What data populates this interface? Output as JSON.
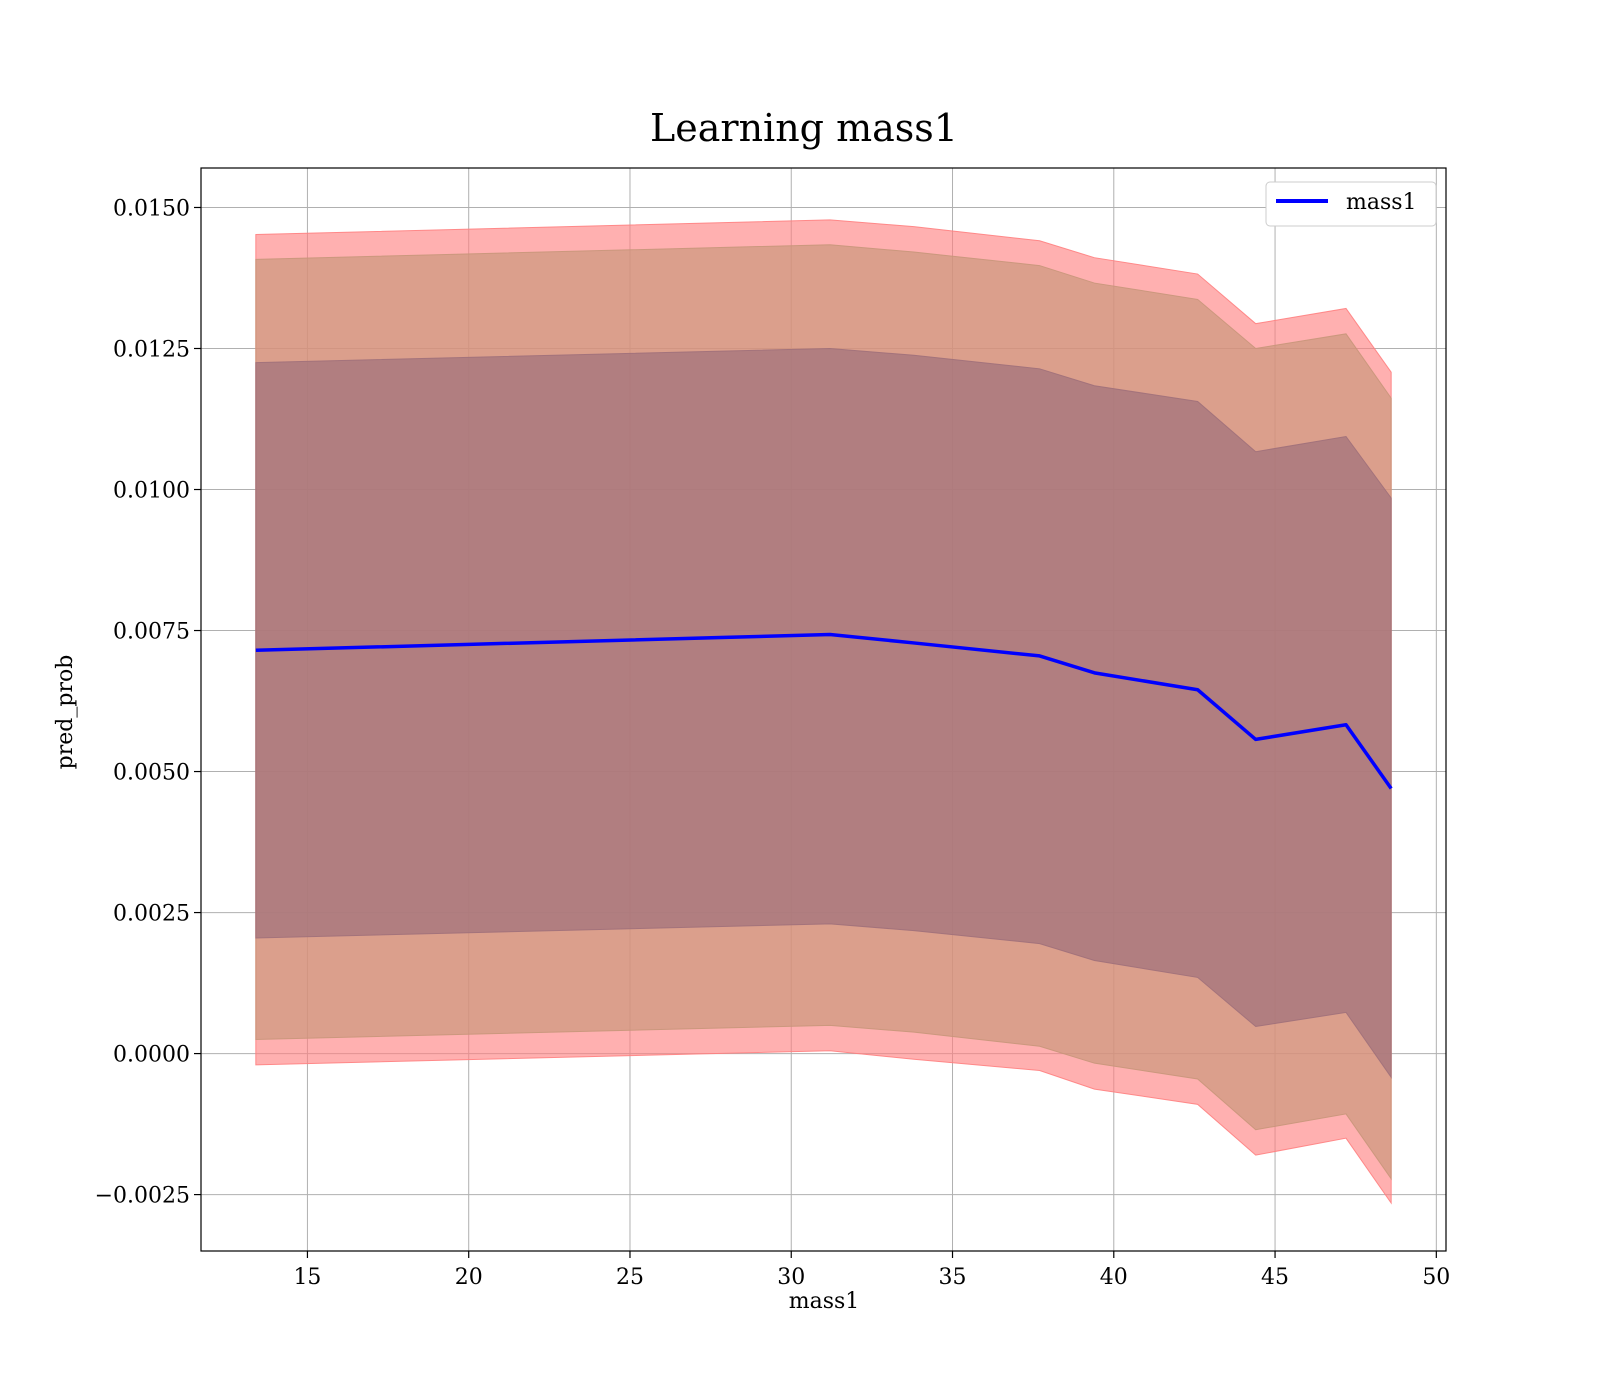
{
  "chart_data": {
    "type": "line",
    "title": "Learning mass1",
    "xlabel": "mass1",
    "ylabel": "pred_prob",
    "xlim": [
      11.7,
      50.3
    ],
    "ylim": [
      -0.0035,
      0.0157
    ],
    "xticks": [
      15,
      20,
      25,
      30,
      35,
      40,
      45,
      50
    ],
    "yticks": [
      -0.0025,
      0.0,
      0.0025,
      0.005,
      0.0075,
      0.01,
      0.0125,
      0.015
    ],
    "ytick_labels": [
      "−0.0025",
      "0.0000",
      "0.0025",
      "0.0050",
      "0.0075",
      "0.0100",
      "0.0125",
      "0.0150"
    ],
    "xtick_labels": [
      "15",
      "20",
      "25",
      "30",
      "35",
      "40",
      "45",
      "50"
    ],
    "grid": true,
    "legend_position": "top-right",
    "x": [
      13.4,
      31.2,
      33.8,
      37.7,
      39.4,
      42.6,
      44.4,
      47.2,
      48.6
    ],
    "series": [
      {
        "name": "mass1",
        "color": "#0000ff",
        "values": [
          0.00715,
          0.00743,
          0.00728,
          0.00705,
          0.00675,
          0.00645,
          0.00557,
          0.00583,
          0.0047
        ]
      }
    ],
    "bands": [
      {
        "level": "outer",
        "color": "#ff8080",
        "upper": [
          0.01452,
          0.01478,
          0.01466,
          0.01441,
          0.01411,
          0.01382,
          0.01294,
          0.01321,
          0.01208
        ],
        "lower": [
          -0.0002,
          5e-05,
          -0.0001,
          -0.0003,
          -0.00063,
          -0.0009,
          -0.0018,
          -0.0015,
          -0.00265
        ]
      },
      {
        "level": "middle",
        "color": "#c8967a",
        "upper": [
          0.01408,
          0.01434,
          0.01421,
          0.01397,
          0.01366,
          0.01337,
          0.0125,
          0.01276,
          0.01162
        ],
        "lower": [
          0.00025,
          0.0005,
          0.00038,
          0.00013,
          -0.00017,
          -0.00045,
          -0.00135,
          -0.00107,
          -0.00222
        ]
      },
      {
        "level": "inner",
        "color": "#a0707a",
        "upper": [
          0.01225,
          0.0125,
          0.01238,
          0.01214,
          0.01184,
          0.01156,
          0.01067,
          0.01094,
          0.00985
        ],
        "lower": [
          0.00205,
          0.0023,
          0.00218,
          0.00195,
          0.00165,
          0.00135,
          0.00048,
          0.00073,
          -0.00042
        ]
      }
    ]
  }
}
